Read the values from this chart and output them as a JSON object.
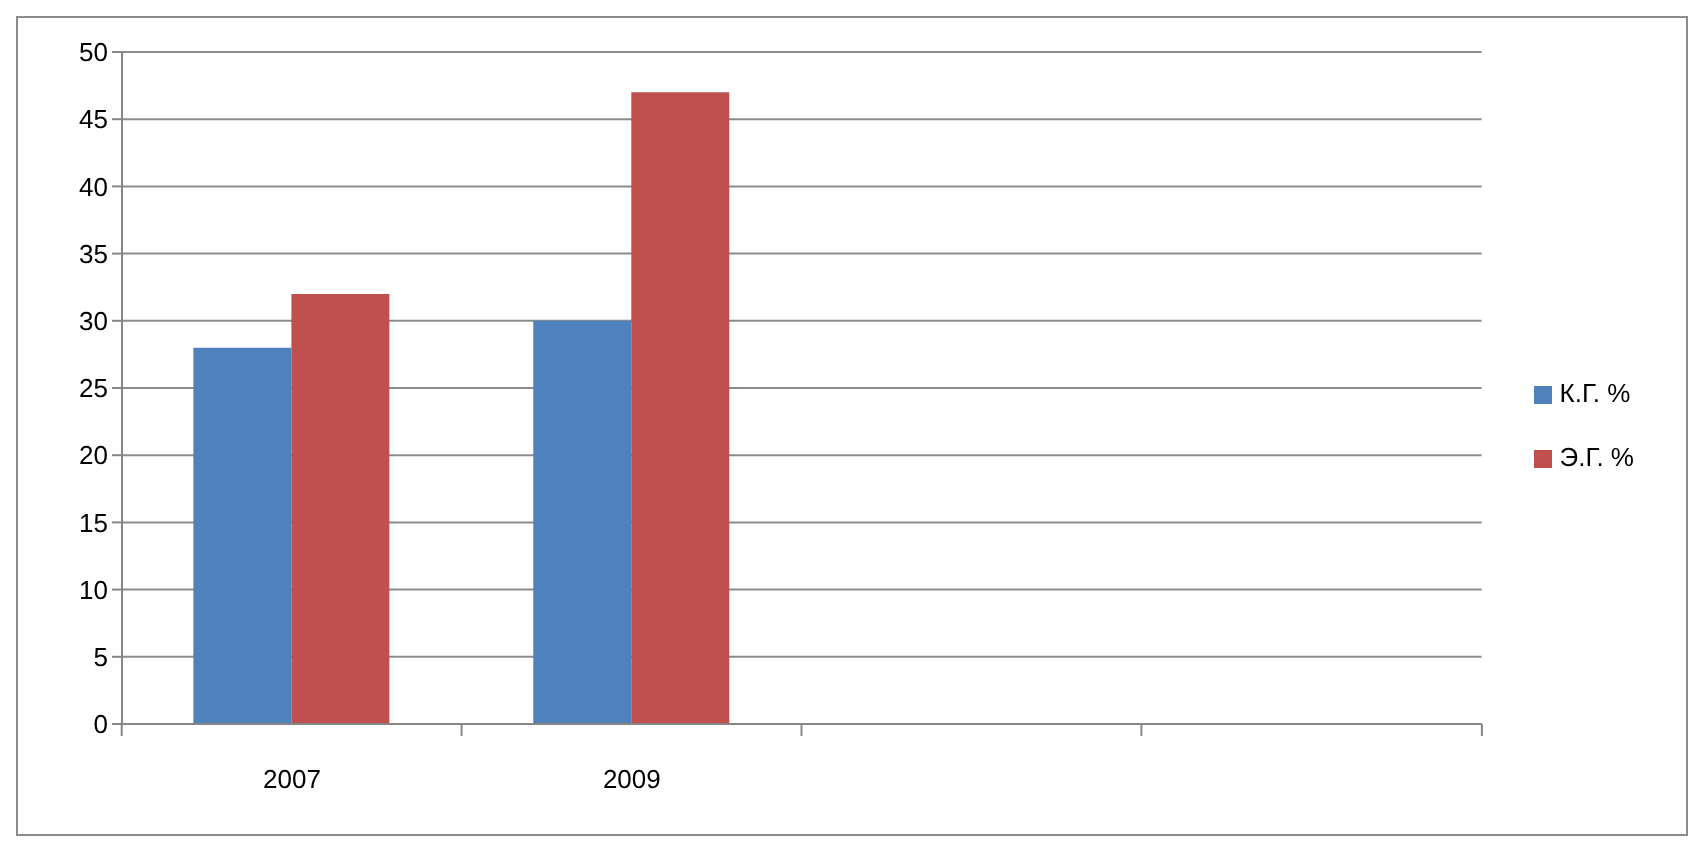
{
  "chart_data": {
    "type": "bar",
    "categories": [
      "2007",
      "2009",
      null,
      null
    ],
    "series": [
      {
        "name": "К.Г. %",
        "color": "#4f81bd",
        "values": [
          28,
          30,
          null,
          null
        ]
      },
      {
        "name": "Э.Г. %",
        "color": "#c0504d",
        "values": [
          32,
          47,
          null,
          null
        ]
      }
    ],
    "ylim": [
      0,
      50
    ],
    "yticks": [
      0,
      5,
      10,
      15,
      20,
      25,
      30,
      35,
      40,
      45,
      50
    ],
    "grid": "y",
    "legend": "right"
  }
}
